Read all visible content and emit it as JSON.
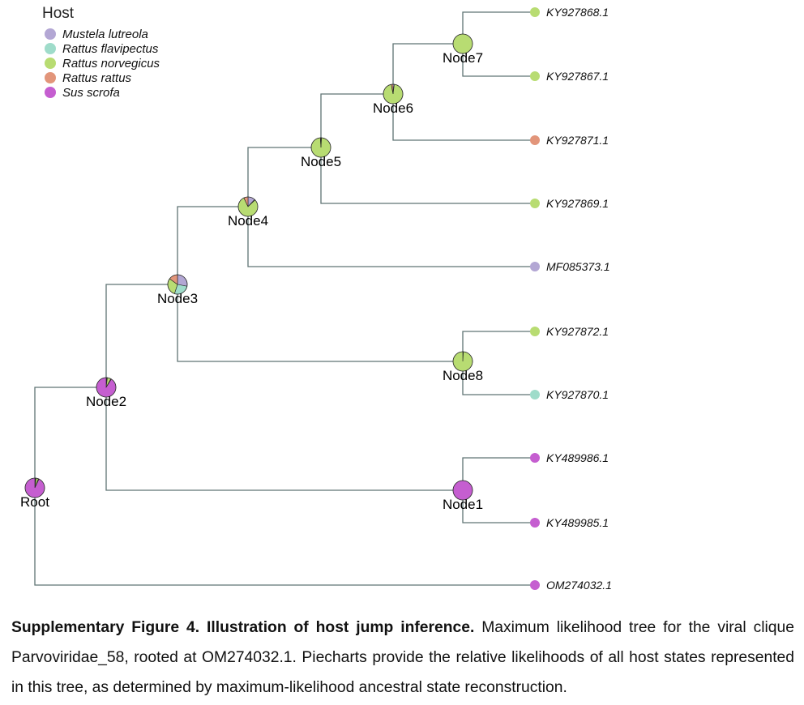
{
  "legend": {
    "title": "Host",
    "hosts": [
      {
        "name": "Mustela lutreola",
        "color": "#b3a7d4"
      },
      {
        "name": "Rattus flavipectus",
        "color": "#9fdcca"
      },
      {
        "name": "Rattus norvegicus",
        "color": "#b8dc72"
      },
      {
        "name": "Rattus rattus",
        "color": "#e2957a"
      },
      {
        "name": "Sus scrofa",
        "color": "#c55ed0"
      }
    ]
  },
  "tree": {
    "internal_nodes": [
      {
        "id": "Root",
        "label": "Root",
        "likelihoods": [
          0.01,
          0.01,
          0.04,
          0.01,
          0.93
        ]
      },
      {
        "id": "Node2",
        "label": "Node2",
        "likelihoods": [
          0.01,
          0.01,
          0.06,
          0.01,
          0.91
        ]
      },
      {
        "id": "Node3",
        "label": "Node3",
        "likelihoods": [
          0.28,
          0.27,
          0.3,
          0.15,
          0.0
        ]
      },
      {
        "id": "Node4",
        "label": "Node4",
        "likelihoods": [
          0.12,
          0.01,
          0.8,
          0.07,
          0.0
        ]
      },
      {
        "id": "Node5",
        "label": "Node5",
        "likelihoods": [
          0.01,
          0.0,
          0.98,
          0.01,
          0.0
        ]
      },
      {
        "id": "Node6",
        "label": "Node6",
        "likelihoods": [
          0.02,
          0.0,
          0.95,
          0.03,
          0.0
        ]
      },
      {
        "id": "Node7",
        "label": "Node7",
        "likelihoods": [
          0.0,
          0.0,
          1.0,
          0.0,
          0.0
        ]
      },
      {
        "id": "Node8",
        "label": "Node8",
        "likelihoods": [
          0.0,
          0.01,
          0.99,
          0.0,
          0.0
        ]
      },
      {
        "id": "Node1",
        "label": "Node1",
        "likelihoods": [
          0.0,
          0.0,
          0.0,
          0.0,
          1.0
        ]
      }
    ],
    "tips": [
      {
        "label": "KY927868.1",
        "host": "Rattus norvegicus"
      },
      {
        "label": "KY927867.1",
        "host": "Rattus norvegicus"
      },
      {
        "label": "KY927871.1",
        "host": "Rattus rattus"
      },
      {
        "label": "KY927869.1",
        "host": "Rattus norvegicus"
      },
      {
        "label": "MF085373.1",
        "host": "Mustela lutreola"
      },
      {
        "label": "KY927872.1",
        "host": "Rattus norvegicus"
      },
      {
        "label": "KY927870.1",
        "host": "Rattus flavipectus"
      },
      {
        "label": "KY489986.1",
        "host": "Sus scrofa"
      },
      {
        "label": "KY489985.1",
        "host": "Sus scrofa"
      },
      {
        "label": "OM274032.1",
        "host": "Sus scrofa"
      }
    ]
  },
  "caption": {
    "title": "Supplementary Figure 4. Illustration of host jump inference.",
    "body": "Maximum likelihood tree for the viral clique Parvoviridae_58, rooted at OM274032.1. Piecharts provide the relative likelihoods of all host states represented in this tree, as determined by maximum-likelihood ancestral state reconstruction."
  }
}
